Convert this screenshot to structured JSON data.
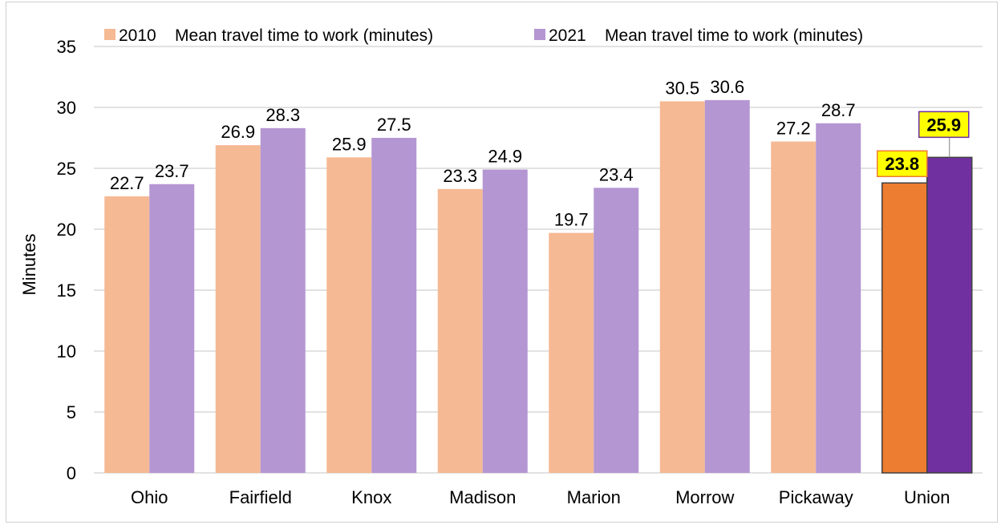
{
  "chart_data": {
    "type": "bar",
    "categories": [
      "Ohio",
      "Fairfield",
      "Knox",
      "Madison",
      "Marion",
      "Morrow",
      "Pickaway",
      "Union"
    ],
    "series": [
      {
        "name": "2010    Mean travel time to work (minutes)",
        "values": [
          22.7,
          26.9,
          25.9,
          23.3,
          19.7,
          30.5,
          27.2,
          23.8
        ],
        "color": "#F5B994",
        "highlight_color": "#ED7D31"
      },
      {
        "name": "2021    Mean travel time to work (minutes)",
        "values": [
          23.7,
          28.3,
          27.5,
          24.9,
          23.4,
          30.6,
          28.7,
          25.9
        ],
        "color": "#B496D2",
        "highlight_color": "#7030A0"
      }
    ],
    "highlighted_category": "Union",
    "highlight_label_bg": "#FFFF00",
    "ylabel": "Minutes",
    "ylim": [
      0,
      35
    ],
    "yticks": [
      "0",
      "5",
      "10",
      "15",
      "20",
      "25",
      "30",
      "35"
    ],
    "grid": true,
    "legend_position": "top"
  }
}
